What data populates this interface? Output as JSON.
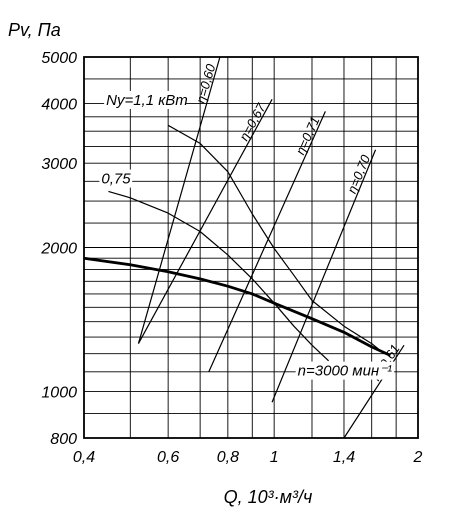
{
  "chart_data": {
    "type": "line",
    "title": "",
    "ylabel": "Pv, Па",
    "xlabel": "Q, 10³·м³/ч",
    "x_scale": "log",
    "y_scale": "log",
    "xlim": [
      0.4,
      2
    ],
    "ylim": [
      800,
      5000
    ],
    "grid": true,
    "x_ticks": [
      {
        "value": 0.4,
        "label": "0,4"
      },
      {
        "value": 0.6,
        "label": "0,6"
      },
      {
        "value": 0.8,
        "label": "0,8"
      },
      {
        "value": 1.0,
        "label": "1"
      },
      {
        "value": 1.4,
        "label": "1,4"
      },
      {
        "value": 2.0,
        "label": "2"
      }
    ],
    "y_ticks": [
      {
        "value": 800,
        "label": "800"
      },
      {
        "value": 1000,
        "label": "1000"
      },
      {
        "value": 2000,
        "label": "2000"
      },
      {
        "value": 3000,
        "label": "3000"
      },
      {
        "value": 4000,
        "label": "4000"
      },
      {
        "value": 5000,
        "label": "5000"
      }
    ],
    "x_grid": [
      0.4,
      0.5,
      0.6,
      0.7,
      0.8,
      0.9,
      1.0,
      1.2,
      1.4,
      1.6,
      1.8,
      2.0
    ],
    "y_grid": [
      800,
      900,
      1000,
      1100,
      1200,
      1300,
      1400,
      1500,
      1600,
      1700,
      1800,
      1900,
      2000,
      2250,
      2500,
      2750,
      3000,
      3250,
      3500,
      3750,
      4000,
      4500,
      5000
    ],
    "series": [
      {
        "name": "n=3000 мин⁻¹",
        "style": "bold",
        "points": [
          [
            0.4,
            1900
          ],
          [
            0.5,
            1840
          ],
          [
            0.6,
            1780
          ],
          [
            0.7,
            1720
          ],
          [
            0.8,
            1660
          ],
          [
            0.9,
            1600
          ],
          [
            1.0,
            1530
          ],
          [
            1.2,
            1420
          ],
          [
            1.4,
            1330
          ],
          [
            1.6,
            1240
          ],
          [
            1.75,
            1190
          ]
        ]
      },
      {
        "name": "Ny=1,1 кВт",
        "style": "thin",
        "points": [
          [
            0.6,
            3600
          ],
          [
            0.7,
            3300
          ],
          [
            0.8,
            2880
          ],
          [
            0.9,
            2350
          ],
          [
            1.0,
            1990
          ],
          [
            1.1,
            1750
          ],
          [
            1.2,
            1550
          ],
          [
            1.4,
            1370
          ],
          [
            1.6,
            1260
          ],
          [
            1.7,
            1200
          ]
        ]
      },
      {
        "name": "0,75",
        "style": "thin",
        "points": [
          [
            0.45,
            2620
          ],
          [
            0.5,
            2540
          ],
          [
            0.6,
            2360
          ],
          [
            0.7,
            2160
          ],
          [
            0.8,
            1930
          ],
          [
            0.9,
            1720
          ],
          [
            1.0,
            1530
          ],
          [
            1.1,
            1370
          ],
          [
            1.2,
            1250
          ],
          [
            1.3,
            1160
          ]
        ]
      }
    ],
    "efficiency_lines": [
      {
        "label": "η=0,60",
        "from": [
          0.52,
          1260
        ],
        "to": [
          0.77,
          5000
        ]
      },
      {
        "label": "η=0,67",
        "from": [
          0.52,
          1260
        ],
        "to": [
          0.99,
          4080
        ]
      },
      {
        "label": "η=0,71",
        "from": [
          0.73,
          1100
        ],
        "to": [
          1.28,
          3850
        ]
      },
      {
        "label": "η=0,70",
        "from": [
          0.99,
          950
        ],
        "to": [
          1.63,
          3200
        ]
      },
      {
        "label": "η=0,61",
        "from": [
          1.4,
          800
        ],
        "to": [
          1.87,
          1250
        ]
      }
    ],
    "annotations": [
      {
        "text": "Ny=1,1 кВт",
        "at": [
          0.445,
          3970
        ]
      },
      {
        "text": "0,75",
        "at": [
          0.435,
          2720
        ]
      },
      {
        "text": "n=3000 мин⁻¹",
        "at": [
          1.12,
          1080
        ]
      }
    ]
  }
}
